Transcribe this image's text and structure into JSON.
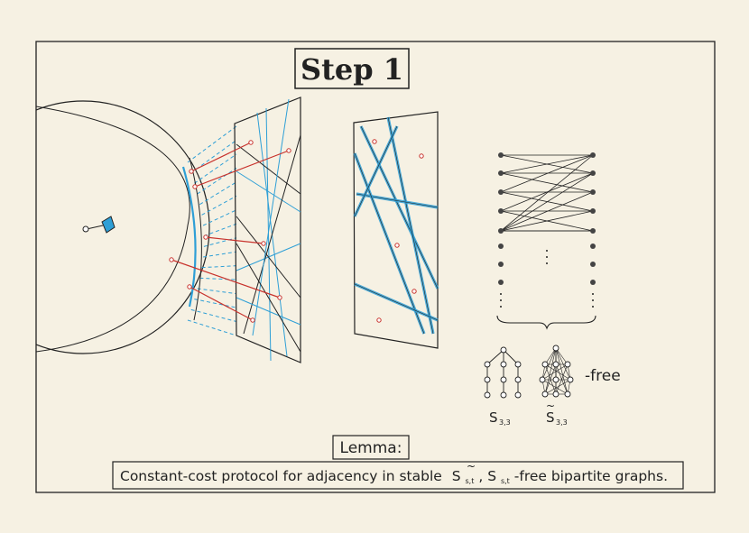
{
  "title": "Step 1",
  "lemma_label": "Lemma:",
  "statement": {
    "prefix": "Constant-cost protocol for adjacency in stable",
    "graph_s": "S",
    "graph_s_sub": "s,t",
    "separator": ",",
    "graph_s_tilde": "S",
    "graph_s_tilde_sub": "s,t",
    "suffix": "-free bipartite graphs."
  },
  "forbidden": {
    "label_s": "S",
    "label_s_sub": "3,3",
    "label_s_tilde": "S",
    "label_s_tilde_sub": "3,3",
    "free_text": "-free"
  },
  "colors": {
    "ink": "#222222",
    "blue": "#2e9fd6",
    "red": "#c8322c",
    "paper": "#f6f1e3"
  }
}
